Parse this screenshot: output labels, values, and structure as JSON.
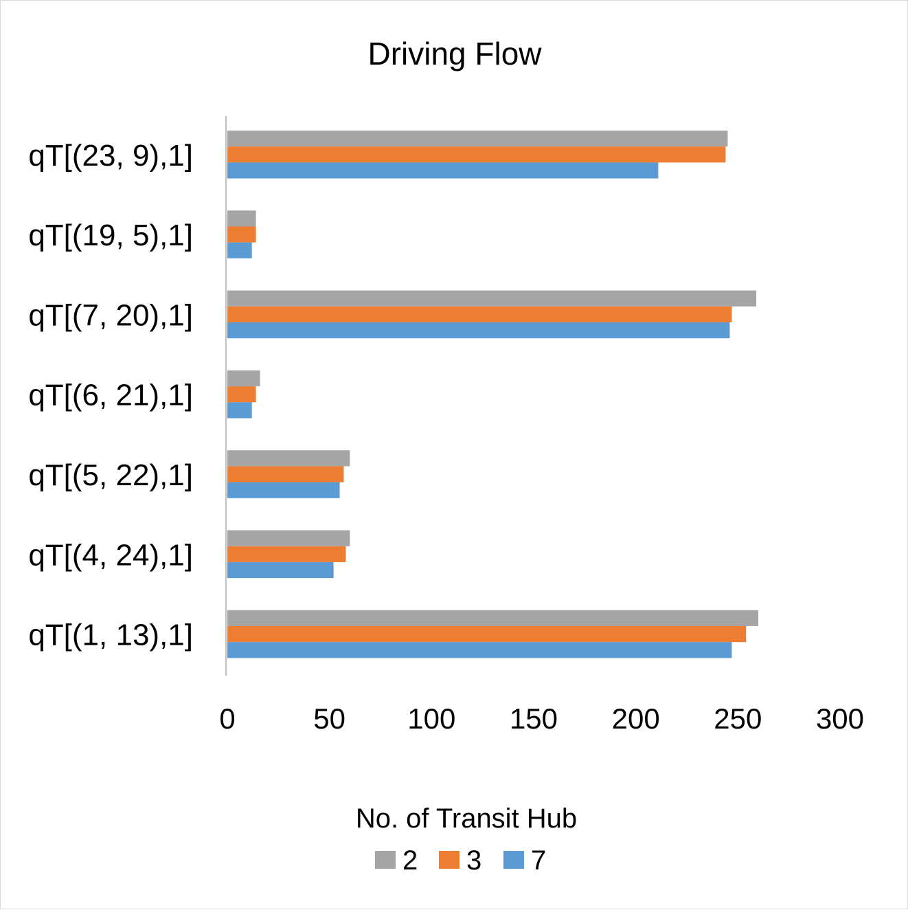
{
  "chart_data": {
    "type": "bar",
    "orientation": "horizontal",
    "title": "Driving Flow",
    "xlabel": "",
    "ylabel": "",
    "categories": [
      "qT[(23, 9),1]",
      "qT[(19, 5),1]",
      "qT[(7, 20),1]",
      "qT[(6, 21),1]",
      "qT[(5, 22),1]",
      "qT[(4, 24),1]",
      "qT[(1, 13),1]"
    ],
    "series": [
      {
        "name": "2",
        "color": "#a5a5a5",
        "values": [
          245,
          14,
          259,
          16,
          60,
          60,
          260
        ]
      },
      {
        "name": "3",
        "color": "#ed7d31",
        "values": [
          244,
          14,
          247,
          14,
          57,
          58,
          254
        ]
      },
      {
        "name": "7",
        "color": "#5b9bd5",
        "values": [
          211,
          12,
          246,
          12,
          55,
          52,
          247
        ]
      }
    ],
    "xlim": [
      0,
      300
    ],
    "xticks": [
      "0",
      "50",
      "100",
      "150",
      "200",
      "250",
      "300"
    ],
    "grid": false,
    "legend": {
      "title": "No. of Transit Hub",
      "position": "bottom"
    }
  }
}
